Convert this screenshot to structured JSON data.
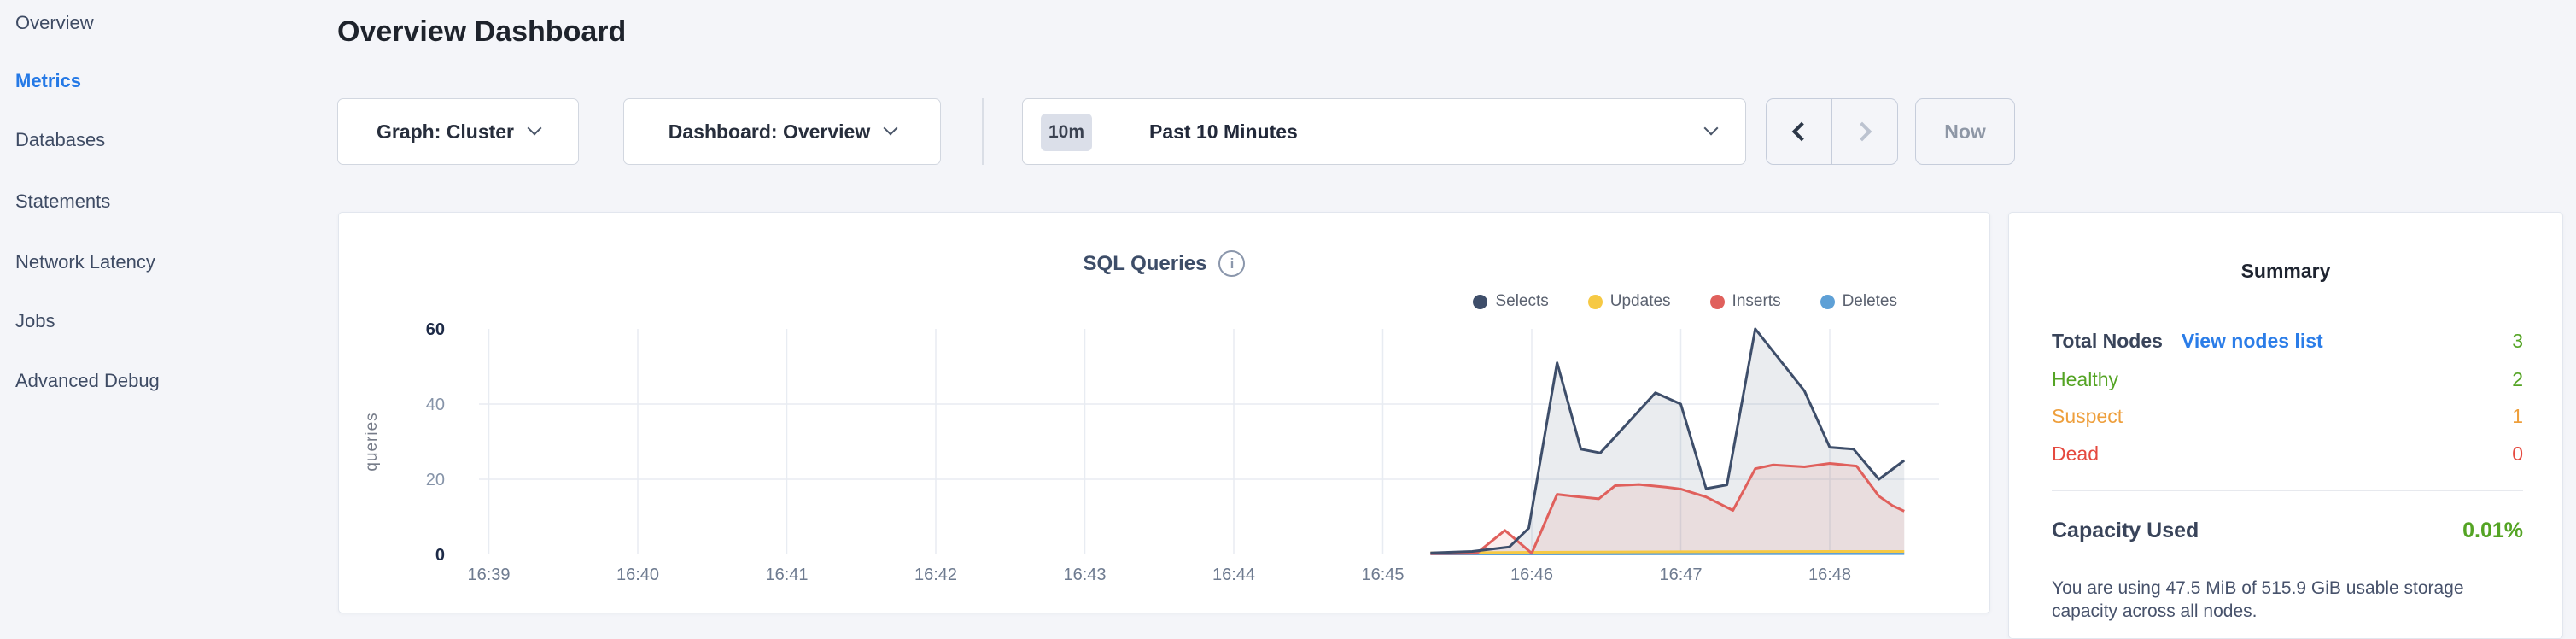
{
  "sidebar": {
    "items": [
      {
        "label": "Overview",
        "active": false
      },
      {
        "label": "Metrics",
        "active": true
      },
      {
        "label": "Databases",
        "active": false
      },
      {
        "label": "Statements",
        "active": false
      },
      {
        "label": "Network Latency",
        "active": false
      },
      {
        "label": "Jobs",
        "active": false
      },
      {
        "label": "Advanced Debug",
        "active": false
      }
    ]
  },
  "header": {
    "title": "Overview Dashboard"
  },
  "toolbar": {
    "graph_dropdown": "Graph: Cluster",
    "dashboard_dropdown": "Dashboard: Overview",
    "time_badge": "10m",
    "time_label": "Past 10 Minutes",
    "now_label": "Now"
  },
  "chart_data": {
    "type": "area",
    "title": "SQL Queries",
    "ylabel": "queries",
    "ylim": [
      0,
      60
    ],
    "yticks": [
      0,
      20,
      40,
      60
    ],
    "grid": true,
    "legend_position": "top-right",
    "x_unit": "minutes after 16:39",
    "xticks": [
      {
        "m": 0,
        "label": "16:39"
      },
      {
        "m": 1,
        "label": "16:40"
      },
      {
        "m": 2,
        "label": "16:41"
      },
      {
        "m": 3,
        "label": "16:42"
      },
      {
        "m": 4,
        "label": "16:43"
      },
      {
        "m": 5,
        "label": "16:44"
      },
      {
        "m": 6,
        "label": "16:45"
      },
      {
        "m": 7,
        "label": "16:46"
      },
      {
        "m": 8,
        "label": "16:47"
      },
      {
        "m": 9,
        "label": "16:48"
      }
    ],
    "series": [
      {
        "name": "Selects",
        "color": "#3e4e6a",
        "fill": true,
        "z": 4,
        "points": [
          [
            6.32,
            0.4
          ],
          [
            6.6,
            0.8
          ],
          [
            6.85,
            2
          ],
          [
            6.98,
            7
          ],
          [
            7.17,
            51
          ],
          [
            7.33,
            28
          ],
          [
            7.46,
            27
          ],
          [
            7.83,
            43
          ],
          [
            8.0,
            40
          ],
          [
            8.17,
            17.5
          ],
          [
            8.31,
            18.5
          ],
          [
            8.5,
            60
          ],
          [
            8.83,
            43.5
          ],
          [
            9.0,
            28.5
          ],
          [
            9.16,
            28
          ],
          [
            9.33,
            20
          ],
          [
            9.5,
            25
          ]
        ]
      },
      {
        "name": "Updates",
        "color": "#f6c944",
        "fill": false,
        "z": 2,
        "points": [
          [
            6.32,
            0.4
          ],
          [
            7.2,
            0.6
          ],
          [
            8.0,
            0.7
          ],
          [
            9.0,
            0.8
          ],
          [
            9.5,
            0.8
          ]
        ]
      },
      {
        "name": "Inserts",
        "color": "#e0605c",
        "fill": true,
        "z": 3,
        "points": [
          [
            6.32,
            0.2
          ],
          [
            6.63,
            0.3
          ],
          [
            6.82,
            6.4
          ],
          [
            7.0,
            0.3
          ],
          [
            7.17,
            16
          ],
          [
            7.3,
            15.4
          ],
          [
            7.45,
            14.8
          ],
          [
            7.56,
            18.3
          ],
          [
            7.72,
            18.6
          ],
          [
            7.9,
            17.9
          ],
          [
            8.0,
            17.4
          ],
          [
            8.17,
            15.3
          ],
          [
            8.35,
            11.7
          ],
          [
            8.5,
            22.8
          ],
          [
            8.62,
            23.8
          ],
          [
            8.83,
            23.3
          ],
          [
            9.0,
            24.2
          ],
          [
            9.18,
            23.5
          ],
          [
            9.33,
            15.5
          ],
          [
            9.42,
            13
          ],
          [
            9.5,
            11.5
          ]
        ]
      },
      {
        "name": "Deletes",
        "color": "#5ea0d6",
        "fill": false,
        "z": 1,
        "points": [
          [
            6.32,
            0.1
          ],
          [
            9.5,
            0.2
          ]
        ]
      }
    ]
  },
  "summary": {
    "title": "Summary",
    "total_nodes": {
      "label": "Total Nodes",
      "link": "View nodes list",
      "value": "3",
      "value_color": "#54a424"
    },
    "statuses": [
      {
        "label": "Healthy",
        "value": "2",
        "color": "#54a424"
      },
      {
        "label": "Suspect",
        "value": "1",
        "color": "#ee9f3c"
      },
      {
        "label": "Dead",
        "value": "0",
        "color": "#e5493f"
      }
    ],
    "capacity": {
      "label": "Capacity Used",
      "value": "0.01%",
      "value_color": "#54a424"
    },
    "capacity_note": "You are using 47.5 MiB of 515.9 GiB usable storage capacity across all nodes."
  },
  "colors": {
    "accent_blue": "#2579e6",
    "page_bg": "#f4f5f9",
    "grid": "#e8ecf2",
    "axis_dark": "#1d2a47",
    "axis_gray": "#8593a8",
    "xtick_gray": "#6e7b90"
  }
}
